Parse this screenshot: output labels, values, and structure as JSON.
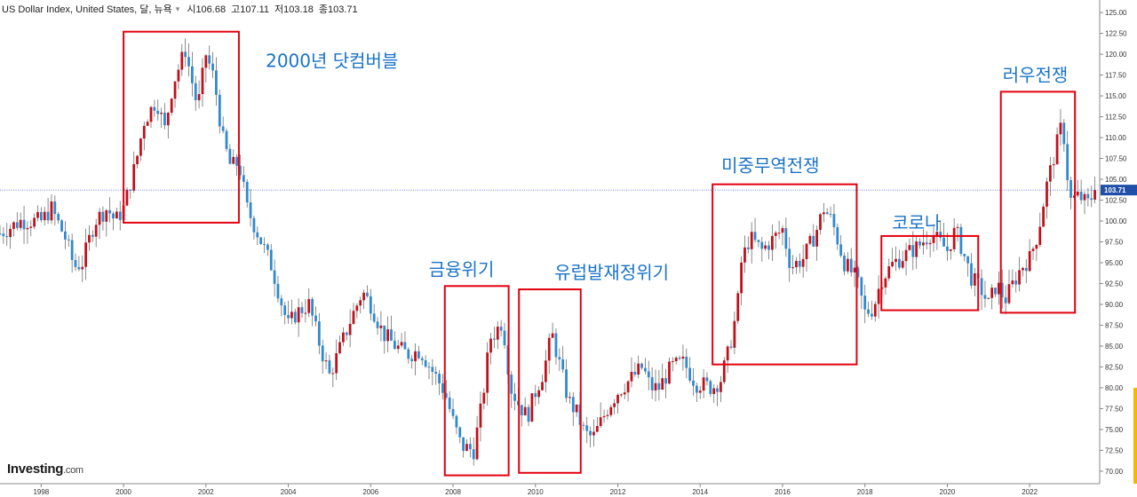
{
  "header": {
    "title": "US Dollar Index, United States, 달, 뉴욕",
    "open_label": "시",
    "open": "106.68",
    "high_label": "고",
    "high": "107.11",
    "low_label": "저",
    "low": "103.18",
    "close_label": "종",
    "close": "103.71",
    "dropdown_icon": "chevron-down-icon",
    "settings_icon": "gear-icon"
  },
  "logo": {
    "name": "Investing",
    "suffix": ".com"
  },
  "chart_data": {
    "type": "candlestick",
    "title": "US Dollar Index, United States, 달, 뉴욕",
    "xlabel": "",
    "ylabel": "",
    "xlim": [
      1997.0,
      2023.7
    ],
    "ylim": [
      68.5,
      126.5
    ],
    "x_ticks": [
      "1998",
      "2000",
      "2002",
      "2004",
      "2006",
      "2008",
      "2010",
      "2012",
      "2014",
      "2016",
      "2018",
      "2020",
      "2022"
    ],
    "y_ticks": [
      "70.00",
      "72.50",
      "75.00",
      "77.50",
      "80.00",
      "82.50",
      "85.00",
      "87.50",
      "90.00",
      "92.50",
      "95.00",
      "97.50",
      "100.00",
      "102.50",
      "105.00",
      "107.50",
      "110.00",
      "112.50",
      "115.00",
      "117.50",
      "120.00",
      "122.50",
      "125.00"
    ],
    "current_price_label": "103.71",
    "current_price": 103.71,
    "up_color": "#c0111b",
    "down_color": "#2f89cf",
    "wick_color": "#6e6e6e",
    "annotation_color": "#1a73c8",
    "box_color": "#e3000f",
    "price_path": [
      [
        1997.0,
        98.5
      ],
      [
        1997.5,
        100.0
      ],
      [
        1998.0,
        100.0
      ],
      [
        1998.25,
        101.5
      ],
      [
        1998.6,
        97.8
      ],
      [
        1998.8,
        94.5
      ],
      [
        1999.0,
        95.0
      ],
      [
        1999.3,
        100.0
      ],
      [
        1999.6,
        101.5
      ],
      [
        1999.8,
        100.0
      ],
      [
        2000.0,
        101.5
      ],
      [
        2000.3,
        107.0
      ],
      [
        2000.5,
        112.0
      ],
      [
        2000.8,
        114.5
      ],
      [
        2001.0,
        111.0
      ],
      [
        2001.2,
        116.5
      ],
      [
        2001.5,
        120.5
      ],
      [
        2001.8,
        113.5
      ],
      [
        2002.0,
        120.0
      ],
      [
        2002.2,
        117.0
      ],
      [
        2002.4,
        110.0
      ],
      [
        2002.6,
        106.5
      ],
      [
        2002.8,
        107.0
      ],
      [
        2003.0,
        101.5
      ],
      [
        2003.3,
        98.0
      ],
      [
        2003.6,
        94.5
      ],
      [
        2003.9,
        89.0
      ],
      [
        2004.0,
        87.5
      ],
      [
        2004.2,
        89.0
      ],
      [
        2004.5,
        90.0
      ],
      [
        2004.8,
        84.5
      ],
      [
        2005.0,
        81.5
      ],
      [
        2005.2,
        84.0
      ],
      [
        2005.5,
        88.0
      ],
      [
        2005.8,
        91.5
      ],
      [
        2006.0,
        90.0
      ],
      [
        2006.3,
        86.5
      ],
      [
        2006.6,
        85.0
      ],
      [
        2006.9,
        84.0
      ],
      [
        2007.2,
        84.5
      ],
      [
        2007.5,
        82.0
      ],
      [
        2007.8,
        79.5
      ],
      [
        2008.0,
        76.0
      ],
      [
        2008.2,
        73.0
      ],
      [
        2008.5,
        72.5
      ],
      [
        2008.7,
        78.0
      ],
      [
        2008.9,
        86.0
      ],
      [
        2009.0,
        86.5
      ],
      [
        2009.2,
        88.0
      ],
      [
        2009.4,
        80.0
      ],
      [
        2009.6,
        78.0
      ],
      [
        2009.8,
        76.5
      ],
      [
        2010.0,
        79.5
      ],
      [
        2010.2,
        82.0
      ],
      [
        2010.4,
        86.5
      ],
      [
        2010.6,
        82.5
      ],
      [
        2010.8,
        78.5
      ],
      [
        2011.0,
        77.0
      ],
      [
        2011.2,
        74.5
      ],
      [
        2011.4,
        74.0
      ],
      [
        2011.6,
        76.0
      ],
      [
        2011.8,
        78.0
      ],
      [
        2012.0,
        79.5
      ],
      [
        2012.3,
        81.0
      ],
      [
        2012.6,
        82.5
      ],
      [
        2012.8,
        80.0
      ],
      [
        2013.0,
        80.0
      ],
      [
        2013.3,
        82.5
      ],
      [
        2013.6,
        83.0
      ],
      [
        2013.9,
        80.5
      ],
      [
        2014.0,
        80.5
      ],
      [
        2014.3,
        80.0
      ],
      [
        2014.5,
        81.0
      ],
      [
        2014.7,
        84.5
      ],
      [
        2014.9,
        89.5
      ],
      [
        2015.0,
        95.0
      ],
      [
        2015.2,
        98.0
      ],
      [
        2015.5,
        96.5
      ],
      [
        2015.8,
        98.0
      ],
      [
        2016.0,
        99.0
      ],
      [
        2016.2,
        94.5
      ],
      [
        2016.5,
        95.5
      ],
      [
        2016.8,
        98.5
      ],
      [
        2017.0,
        101.5
      ],
      [
        2017.2,
        100.0
      ],
      [
        2017.5,
        95.0
      ],
      [
        2017.8,
        93.0
      ],
      [
        2018.0,
        89.0
      ],
      [
        2018.2,
        89.5
      ],
      [
        2018.4,
        93.0
      ],
      [
        2018.7,
        95.0
      ],
      [
        2019.0,
        96.0
      ],
      [
        2019.3,
        97.0
      ],
      [
        2019.6,
        98.5
      ],
      [
        2019.9,
        97.0
      ],
      [
        2020.0,
        96.5
      ],
      [
        2020.2,
        99.0
      ],
      [
        2020.4,
        96.0
      ],
      [
        2020.6,
        93.0
      ],
      [
        2020.8,
        92.0
      ],
      [
        2021.0,
        90.0
      ],
      [
        2021.2,
        92.5
      ],
      [
        2021.4,
        90.5
      ],
      [
        2021.6,
        92.5
      ],
      [
        2021.8,
        94.5
      ],
      [
        2022.0,
        95.5
      ],
      [
        2022.2,
        98.5
      ],
      [
        2022.4,
        104.0
      ],
      [
        2022.6,
        108.0
      ],
      [
        2022.8,
        112.0
      ],
      [
        2022.9,
        106.0
      ],
      [
        2023.0,
        102.5
      ],
      [
        2023.2,
        103.0
      ],
      [
        2023.4,
        102.0
      ],
      [
        2023.6,
        103.71
      ]
    ]
  },
  "annotations": [
    {
      "label": "2000년 닷컴버블",
      "x1": 2000.0,
      "x2": 2002.8,
      "y_top": 122.7,
      "y_bottom": 99.8
    },
    {
      "label": "금융위기",
      "x1": 2007.8,
      "x2": 2009.35,
      "y_top": 92.2,
      "y_bottom": 69.5
    },
    {
      "label": "유럽발재정위기",
      "x1": 2009.6,
      "x2": 2011.1,
      "y_top": 91.8,
      "y_bottom": 69.8
    },
    {
      "label": "미중무역전쟁",
      "x1": 2014.3,
      "x2": 2017.8,
      "y_top": 104.4,
      "y_bottom": 82.8
    },
    {
      "label": "코로나",
      "x1": 2018.4,
      "x2": 2020.75,
      "y_top": 98.2,
      "y_bottom": 89.3
    },
    {
      "label": "러우전쟁",
      "x1": 2021.3,
      "x2": 2023.1,
      "y_top": 115.5,
      "y_bottom": 89.0
    }
  ]
}
